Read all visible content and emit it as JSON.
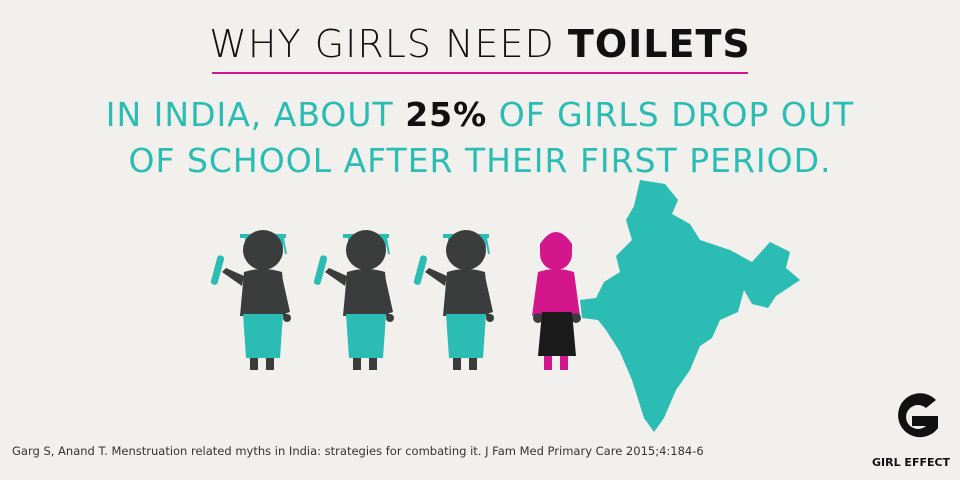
{
  "header": {
    "title_plain": "WHY GIRLS NEED",
    "title_bold": "TOILETS"
  },
  "headline": {
    "line1_start": "IN INDIA, ABOUT",
    "line1_bold": "25%",
    "line1_end": "OF GIRLS DROP OUT",
    "line2": "OF SCHOOL AFTER THEIR FIRST PERIOD."
  },
  "citation": "Garg S, Anand T. Menstruation related myths in India: strategies for combating it. J Fam Med Primary Care 2015;4:184-6",
  "logo": {
    "text": "GIRL EFFECT"
  }
}
